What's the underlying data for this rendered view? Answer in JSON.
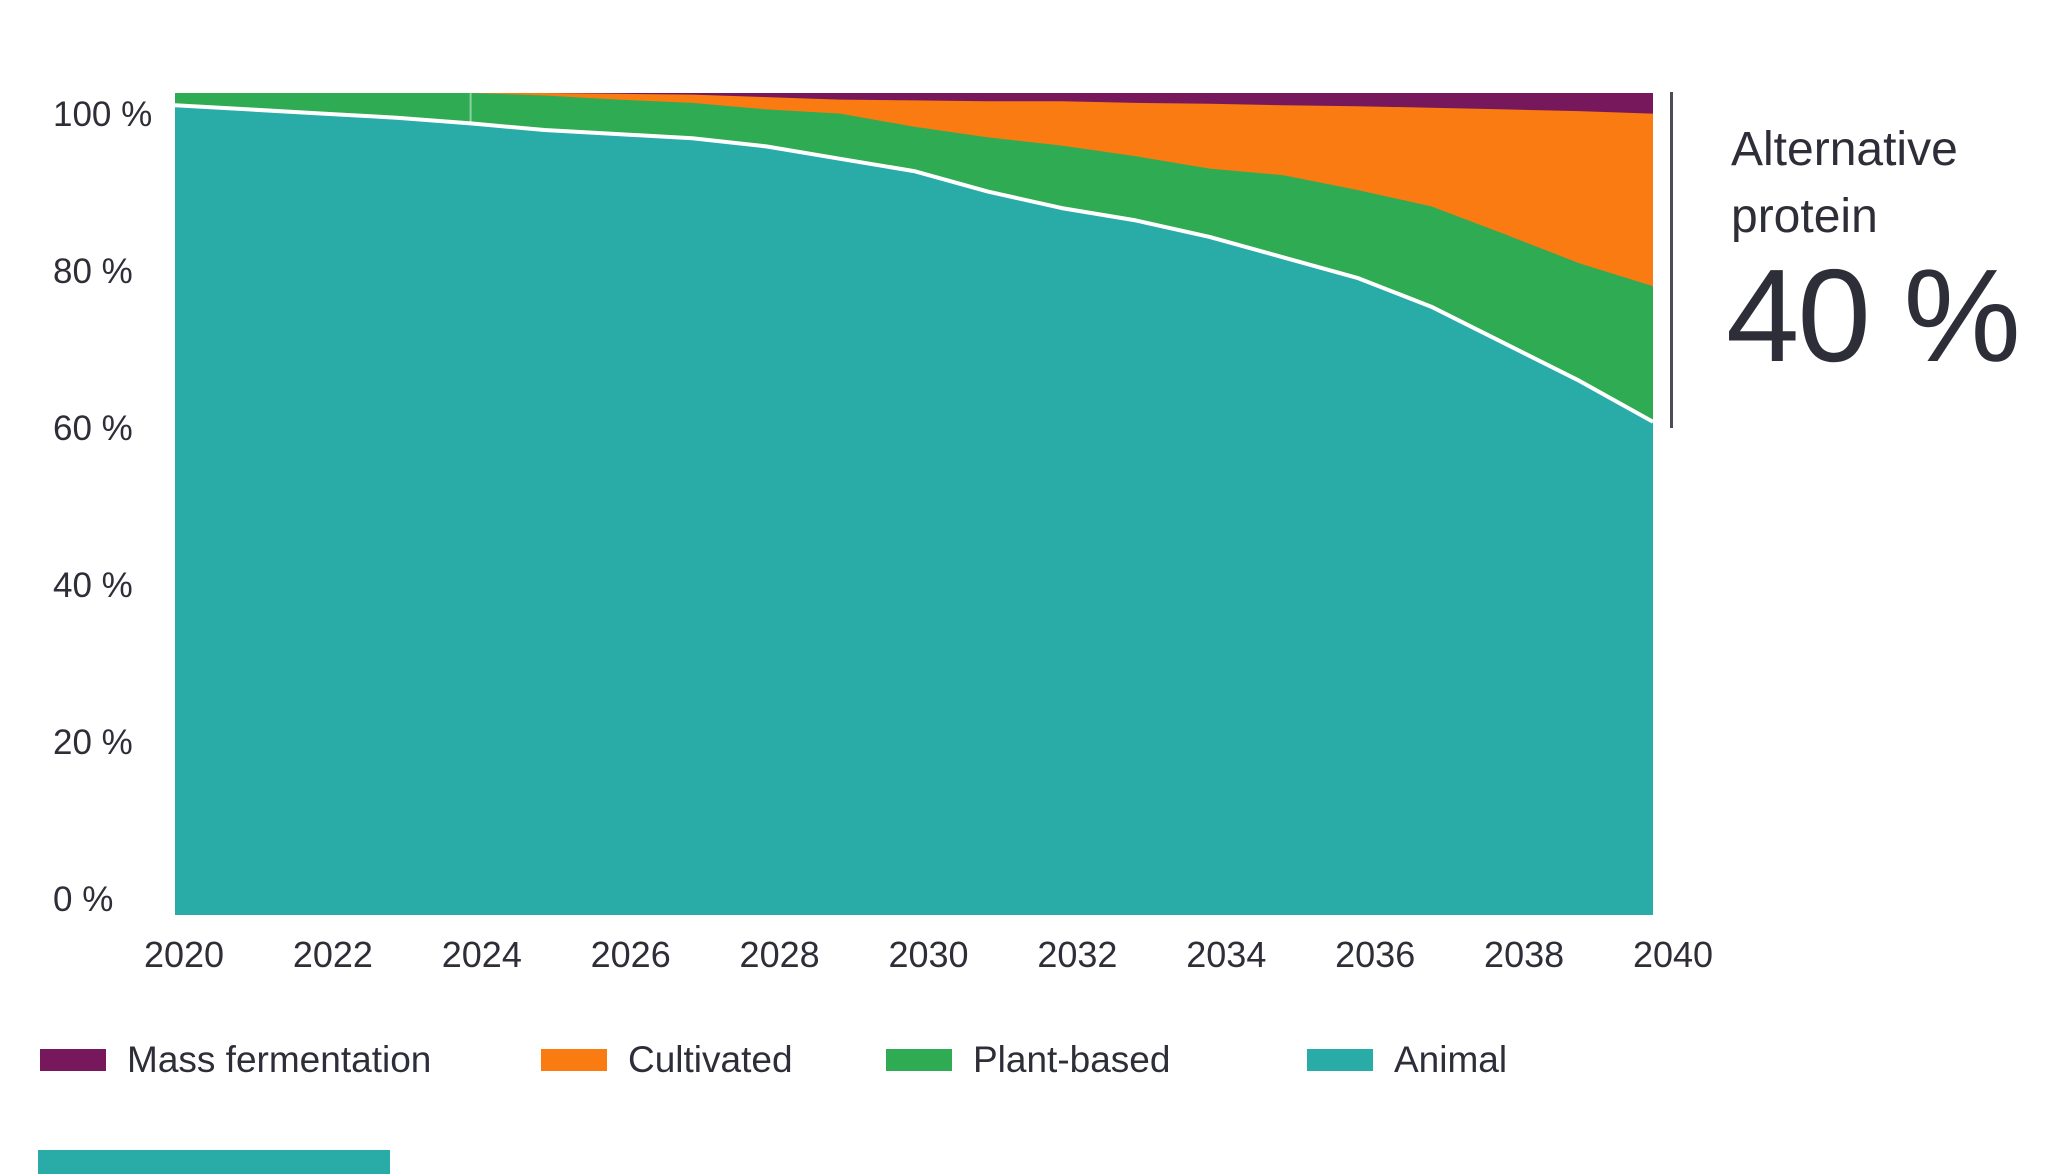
{
  "chart_data": {
    "type": "area",
    "stacked": true,
    "unit": "%",
    "title": "",
    "xlabel": "",
    "ylabel": "",
    "ylim": [
      0,
      100
    ],
    "grid": false,
    "legend_position": "bottom",
    "x": [
      2020,
      2021,
      2022,
      2023,
      2024,
      2025,
      2026,
      2027,
      2028,
      2029,
      2030,
      2031,
      2032,
      2033,
      2034,
      2035,
      2036,
      2037,
      2038,
      2039,
      2040
    ],
    "x_tick_labels": [
      "2020",
      "2022",
      "2024",
      "2026",
      "2028",
      "2030",
      "2032",
      "2034",
      "2036",
      "2038",
      "2040"
    ],
    "y_tick_labels": [
      "100 %",
      "80 %",
      "60 %",
      "40 %",
      "20 %",
      "0 %"
    ],
    "y_tick_values": [
      100,
      80,
      60,
      40,
      20,
      0
    ],
    "series": [
      {
        "name": "Animal",
        "color": "#29ABA8",
        "values": [
          98.5,
          98.0,
          97.5,
          97.0,
          96.3,
          95.5,
          95.0,
          94.5,
          93.5,
          92.0,
          90.5,
          88.0,
          86.0,
          84.5,
          82.5,
          80.0,
          77.5,
          74.0,
          69.5,
          65.0,
          60.0
        ]
      },
      {
        "name": "Plant-based",
        "color": "#2FAB53",
        "values": [
          1.5,
          2.0,
          2.5,
          3.0,
          3.7,
          4.2,
          4.2,
          4.3,
          4.5,
          5.5,
          5.4,
          6.6,
          7.6,
          7.8,
          8.3,
          10.0,
          10.7,
          12.2,
          13.3,
          14.3,
          16.5
        ]
      },
      {
        "name": "Cultivated",
        "color": "#F97B12",
        "values": [
          0,
          0,
          0,
          0,
          0,
          0.3,
          0.7,
          1.0,
          1.5,
          1.7,
          3.2,
          4.4,
          5.4,
          6.5,
          7.9,
          8.5,
          10.2,
          12.0,
          15.2,
          18.5,
          21.0
        ]
      },
      {
        "name": "Mass fermentation",
        "color": "#78185C",
        "values": [
          0,
          0,
          0,
          0,
          0,
          0,
          0.1,
          0.2,
          0.5,
          0.8,
          0.9,
          1.0,
          1.0,
          1.2,
          1.3,
          1.5,
          1.6,
          1.8,
          2.0,
          2.2,
          2.5
        ]
      }
    ],
    "separator_line_color": "#FFFFFF"
  },
  "legend": {
    "items": [
      {
        "label": "Mass fermentation",
        "color": "#78185C"
      },
      {
        "label": "Cultivated",
        "color": "#F97B12"
      },
      {
        "label": "Plant-based",
        "color": "#2FAB53"
      },
      {
        "label": "Animal",
        "color": "#29ABA8"
      }
    ]
  },
  "annotation": {
    "line1": "Alternative",
    "line2": "protein",
    "value": "40 %"
  },
  "colors": {
    "text": "#2E2E38",
    "accent_bar": "#29ABA8",
    "background": "#FFFFFF"
  }
}
